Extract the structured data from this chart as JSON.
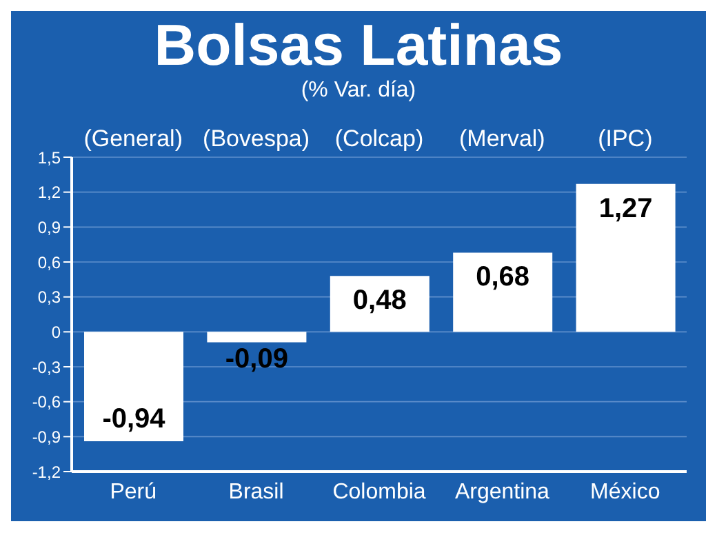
{
  "chart_data": {
    "type": "bar",
    "title": "Bolsas Latinas",
    "subtitle": "(% Var. día)",
    "categories": [
      "Perú",
      "Brasil",
      "Colombia",
      "Argentina",
      "México"
    ],
    "values": [
      -0.94,
      -0.09,
      0.48,
      0.68,
      1.27
    ],
    "value_labels": [
      "-0,94",
      "-0,09",
      "0,48",
      "0,68",
      "1,27"
    ],
    "color": "#ffffff",
    "annotations": [
      "(General)",
      "(Bovespa)",
      "(Colcap)",
      "(Merval)",
      "(IPC)"
    ],
    "ylim": [
      -1.2,
      1.5
    ],
    "yticks": [
      {
        "value": 1.5,
        "label": "1,5"
      },
      {
        "value": 1.2,
        "label": "1,2"
      },
      {
        "value": 0.9,
        "label": "0,9"
      },
      {
        "value": 0.6,
        "label": "0,6"
      },
      {
        "value": 0.3,
        "label": "0,3"
      },
      {
        "value": 0,
        "label": "0"
      },
      {
        "value": -0.3,
        "label": "-0,3"
      },
      {
        "value": -0.6,
        "label": "-0,6"
      },
      {
        "value": -0.9,
        "label": "-0,9"
      },
      {
        "value": -1.2,
        "label": "-1,2"
      }
    ],
    "grid": "y",
    "legend": false
  }
}
